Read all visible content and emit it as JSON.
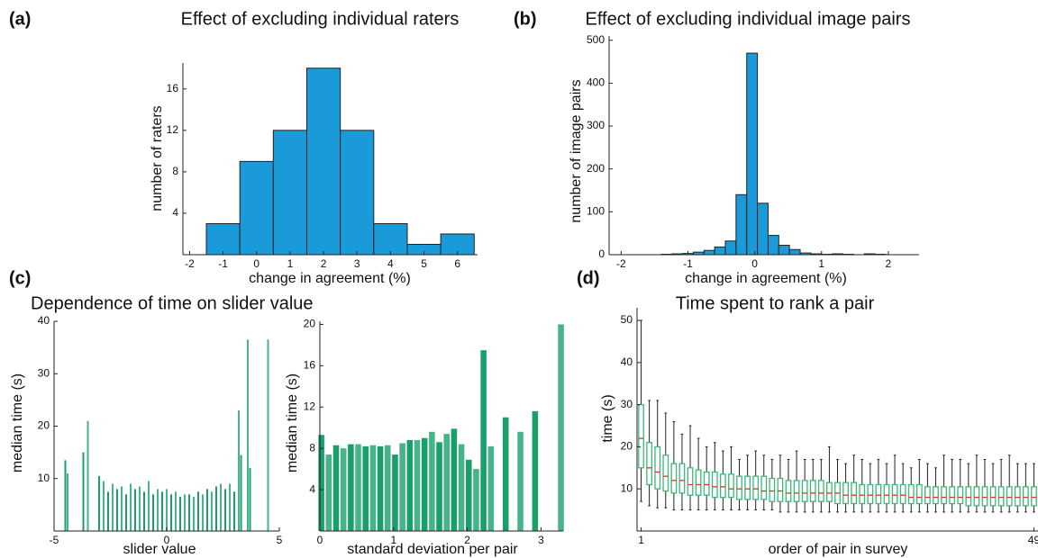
{
  "chart_data": [
    {
      "type": "histogram",
      "panel": "(a)",
      "title": "Effect of excluding individual raters",
      "xlabel": "change in agreement (%)",
      "ylabel": "number of raters",
      "bins": [
        -1.5,
        -0.5,
        0.5,
        1.5,
        2.5,
        3.5,
        4.5,
        5.5,
        6.5
      ],
      "values": [
        3,
        9,
        12,
        18,
        12,
        3,
        1,
        2
      ],
      "color": "#1a9ad8",
      "xlim": [
        -2.2,
        6.6
      ],
      "ylim": [
        0,
        18.5
      ],
      "xticks": [
        -2,
        -1,
        0,
        1,
        2,
        3,
        4,
        5,
        6
      ],
      "yticks": [
        4,
        8,
        12,
        16
      ]
    },
    {
      "type": "histogram",
      "panel": "(b)",
      "title": "Effect of excluding individual image pairs",
      "xlabel": "change in agreement (%)",
      "ylabel": "number of image pairs",
      "bins": [
        -1.56,
        -1.4,
        -1.24,
        -1.08,
        -0.92,
        -0.76,
        -0.6,
        -0.44,
        -0.28,
        -0.12,
        0.04,
        0.2,
        0.36,
        0.52,
        0.68,
        0.84,
        1.0,
        1.16,
        1.32,
        1.48,
        1.64,
        1.8,
        1.96,
        2.12
      ],
      "values": [
        0,
        1,
        2,
        3,
        6,
        10,
        18,
        32,
        140,
        470,
        120,
        45,
        22,
        12,
        4,
        2,
        1,
        2,
        1,
        0,
        2,
        1,
        0
      ],
      "color": "#1a9ad8",
      "xlim": [
        -2.18,
        2.46
      ],
      "ylim": [
        0,
        510
      ],
      "xticks": [
        -2,
        -1,
        0,
        1,
        2
      ],
      "yticks": [
        0,
        100,
        200,
        300,
        400,
        500
      ]
    },
    {
      "type": "bar",
      "panel": "(c)",
      "title": "Dependence of time on slider value",
      "xlabel": "slider value",
      "ylabel": "median time (s)",
      "x": [
        -4.5,
        -4.4,
        -3.7,
        -3.5,
        -3.0,
        -2.8,
        -2.6,
        -2.4,
        -2.2,
        -2.0,
        -1.8,
        -1.6,
        -1.4,
        -1.2,
        -1.0,
        -0.8,
        -0.6,
        -0.4,
        -0.2,
        0,
        0.2,
        0.4,
        0.6,
        0.8,
        1.0,
        1.2,
        1.4,
        1.6,
        1.8,
        2.0,
        2.2,
        2.4,
        2.6,
        2.8,
        3.0,
        3.2,
        3.3,
        3.6,
        3.7,
        4.5
      ],
      "values": [
        13.5,
        11,
        15,
        21,
        10.5,
        9.5,
        7.5,
        9,
        8,
        8.5,
        7,
        9,
        8,
        8.5,
        7.5,
        9.5,
        7,
        8,
        7.5,
        8,
        7,
        7.5,
        6.5,
        7,
        7,
        6.5,
        7.5,
        7,
        8,
        7.5,
        8.5,
        9,
        8,
        9,
        7.5,
        23,
        14.5,
        36.5,
        12,
        36.5
      ],
      "color": "#19a06a",
      "xlim": [
        -5,
        5
      ],
      "ylim": [
        0,
        40
      ],
      "xticks": [
        -5,
        0,
        5
      ],
      "yticks": [
        10,
        20,
        30,
        40
      ]
    },
    {
      "type": "bar",
      "xlabel": "standard deviation per pair",
      "ylabel": "median time (s)",
      "x": [
        0.02,
        0.12,
        0.22,
        0.32,
        0.42,
        0.52,
        0.62,
        0.72,
        0.82,
        0.92,
        1.02,
        1.12,
        1.22,
        1.32,
        1.42,
        1.52,
        1.62,
        1.72,
        1.82,
        1.92,
        2.02,
        2.12,
        2.22,
        2.32,
        2.52,
        2.72,
        2.92,
        3.27
      ],
      "values": [
        9.3,
        7.4,
        8.3,
        8.0,
        8.4,
        8.4,
        8.2,
        8.3,
        8.2,
        8.3,
        7.4,
        8.5,
        8.8,
        8.8,
        9.0,
        9.6,
        8.6,
        9.4,
        9.9,
        8.4,
        6.9,
        6.0,
        17.5,
        8.2,
        11,
        9.6,
        11.6,
        20
      ],
      "color": "#19a06a",
      "xlim": [
        0,
        3.3
      ],
      "ylim": [
        0,
        20.3
      ],
      "xticks": [
        0,
        1,
        2,
        3
      ],
      "yticks": [
        4,
        8,
        12,
        16,
        20
      ]
    },
    {
      "type": "box",
      "panel": "(d)",
      "title": "Time spent to rank a pair",
      "xlabel": "order of pair in survey",
      "ylabel": "time (s)",
      "x": [
        1,
        2,
        3,
        4,
        5,
        6,
        7,
        8,
        9,
        10,
        11,
        12,
        13,
        14,
        15,
        16,
        17,
        18,
        19,
        20,
        21,
        22,
        23,
        24,
        25,
        26,
        27,
        28,
        29,
        30,
        31,
        32,
        33,
        34,
        35,
        36,
        37,
        38,
        39,
        40,
        41,
        42,
        43,
        44,
        45,
        46,
        47,
        48,
        49
      ],
      "whisker_low": [
        7,
        6,
        5.5,
        5.5,
        5,
        5,
        5,
        5,
        5,
        5,
        5,
        5,
        5,
        5,
        5,
        5,
        5,
        4.5,
        4.5,
        4.5,
        4.5,
        4.5,
        4.5,
        4.5,
        4.5,
        4.5,
        4.5,
        4.5,
        4.5,
        4.5,
        4.5,
        4.5,
        4.5,
        4.5,
        4.5,
        4.5,
        4.5,
        4.5,
        4.5,
        4.5,
        4.5,
        4.5,
        4.5,
        4.5,
        4.5,
        4.5,
        4.5,
        4.5,
        4.5
      ],
      "q1": [
        15,
        11,
        10,
        9.5,
        9,
        9,
        8.5,
        8.5,
        8.5,
        8,
        8,
        8,
        7.5,
        7.5,
        7.5,
        7.5,
        7,
        7,
        7,
        7,
        7,
        7,
        7,
        7,
        6.5,
        6.5,
        6.5,
        6.5,
        6.5,
        6.5,
        6.5,
        6.5,
        6.5,
        6.5,
        6.5,
        6.5,
        6.5,
        6.5,
        6.5,
        6.5,
        6,
        6,
        6,
        6,
        6,
        6,
        6,
        6,
        6
      ],
      "median": [
        22,
        15,
        14,
        13,
        12,
        12,
        11,
        11,
        11,
        10.5,
        10.5,
        10,
        10,
        10,
        10,
        9.5,
        9.5,
        9.5,
        9,
        9,
        9,
        9,
        9,
        9,
        9,
        8.5,
        8.5,
        8.5,
        8.5,
        8.5,
        8.5,
        8.5,
        8.5,
        8,
        8,
        8,
        8,
        8,
        8,
        8,
        8,
        8,
        8,
        8,
        8,
        8,
        8,
        8,
        8
      ],
      "q3": [
        30,
        21,
        20,
        18,
        16,
        16,
        15,
        14.5,
        14,
        14,
        13.5,
        13.5,
        13,
        13,
        13,
        13,
        12.5,
        12.5,
        12,
        12,
        12,
        12,
        12,
        11.5,
        11.5,
        11.5,
        11.5,
        11,
        11,
        11,
        11,
        11,
        11,
        11,
        11,
        10.5,
        10.5,
        10.5,
        10.5,
        10.5,
        10.5,
        10.5,
        10.5,
        10.5,
        10.5,
        10.5,
        10.5,
        10.5,
        10.5
      ],
      "whisker_high": [
        50,
        31,
        31,
        28,
        26,
        23,
        25,
        22,
        20,
        21,
        19,
        20,
        17,
        18,
        19,
        18,
        17,
        18,
        17,
        19,
        17,
        17,
        17,
        20,
        17,
        16,
        18,
        17,
        16,
        17,
        16,
        18,
        16,
        15,
        17,
        16,
        15,
        18,
        17,
        17,
        16,
        18,
        17,
        16,
        17,
        18,
        16,
        16,
        16
      ],
      "color": "#3cb878",
      "median_color": "#e03020",
      "xlim": [
        0.5,
        49.5
      ],
      "ylim": [
        0,
        53
      ],
      "xticks": [
        1,
        49
      ],
      "yticks": [
        10,
        20,
        30,
        40,
        50
      ]
    }
  ]
}
